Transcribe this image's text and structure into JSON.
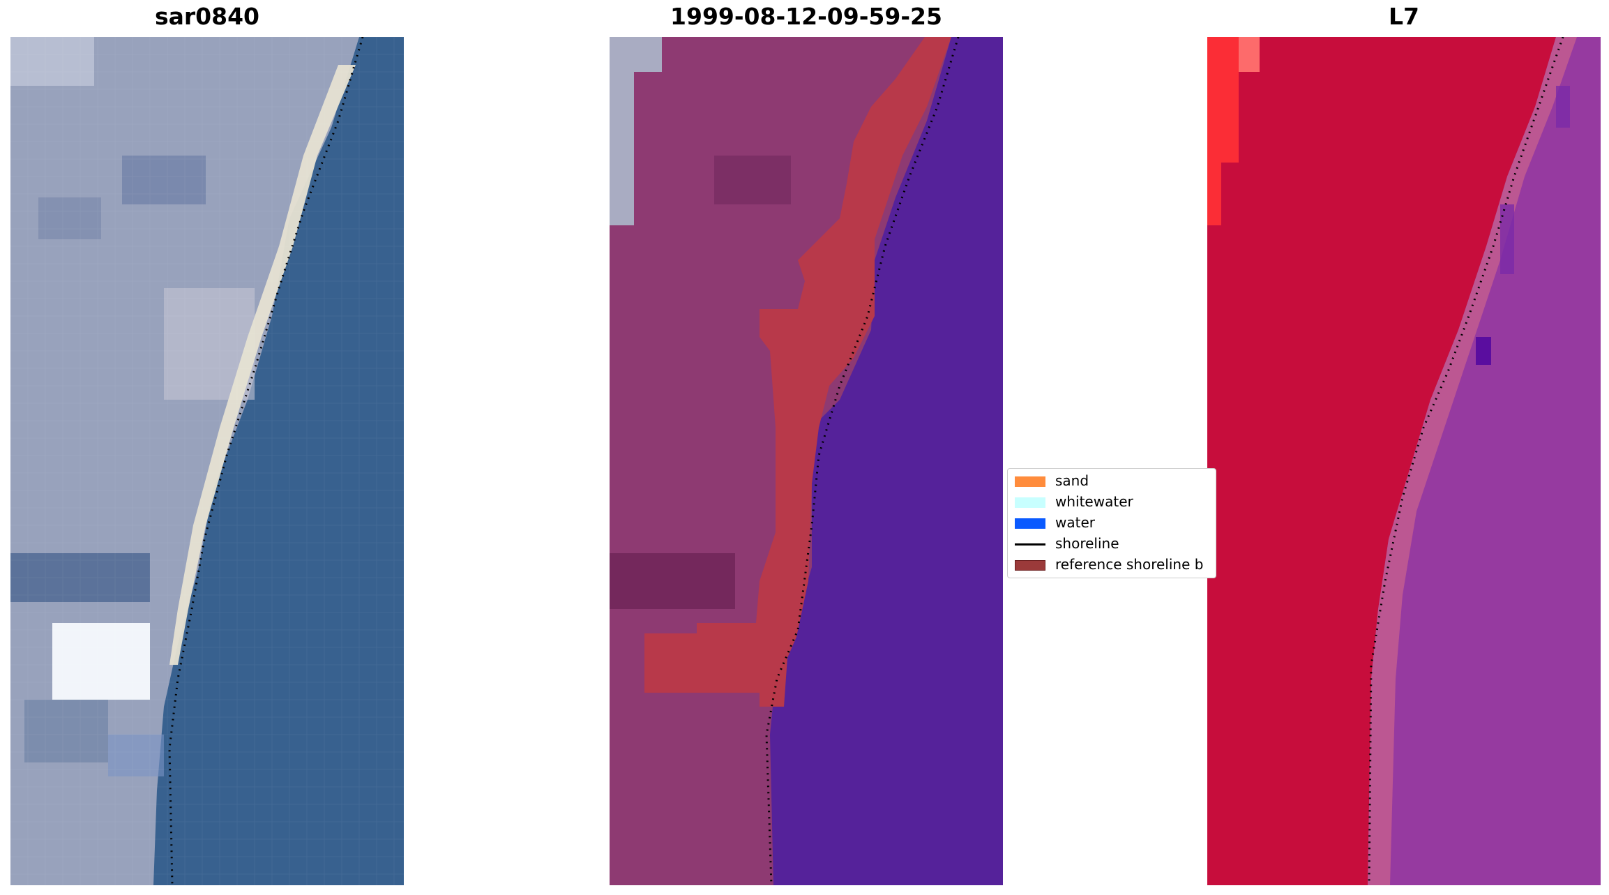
{
  "panels": [
    {
      "title": "sar0840",
      "kind": "rgb"
    },
    {
      "title": "1999-08-12-09-59-25",
      "kind": "classified"
    },
    {
      "title": "L7",
      "kind": "false-color"
    }
  ],
  "legend": {
    "items": [
      {
        "label": "sand",
        "color": "#ff8c3c"
      },
      {
        "label": "whitewater",
        "color": "#c8ffff"
      },
      {
        "label": "water",
        "color": "#0a5aff"
      },
      {
        "label": "shoreline",
        "color": "#000000"
      },
      {
        "label": "reference shoreline b",
        "color": "#9b3a3a"
      }
    ]
  },
  "colors": {
    "rgb_land": "#98a2bc",
    "rgb_sea": "#38618f",
    "rgb_sand": "#e6e1d2",
    "class_land": "#8e3a72",
    "class_water": "#55229a",
    "class_buffer": "#b8394a",
    "fc_land": "#c70d3c",
    "fc_sea": "#963aa0",
    "shoreline": "#000000"
  }
}
